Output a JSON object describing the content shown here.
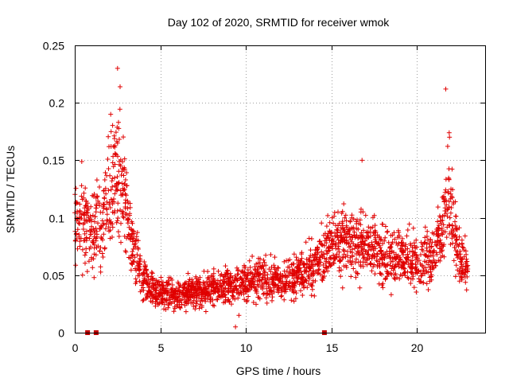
{
  "chart_data": {
    "type": "scatter",
    "title": "Day 102 of 2020, SRMTID for receiver wmok",
    "xlabel": "GPS time / hours",
    "ylabel": "SRMTID / TECUs",
    "xlim": [
      0,
      24
    ],
    "ylim": [
      0,
      0.25
    ],
    "xticks": [
      0,
      5,
      10,
      15,
      20
    ],
    "xtick_labels": [
      "0",
      "5",
      "10",
      "15",
      "20"
    ],
    "yticks": [
      0,
      0.05,
      0.1,
      0.15,
      0.2,
      0.25
    ],
    "ytick_labels": [
      "0",
      "0.05",
      "0.1",
      "0.15",
      "0.2",
      "0.25"
    ],
    "grid": true,
    "marker": "+",
    "color": "#e00000",
    "flag_markers_at_zero": [
      0.75,
      1.25,
      14.6
    ],
    "profile_knots": [
      [
        0.0,
        0.095
      ],
      [
        0.5,
        0.1
      ],
      [
        1.0,
        0.085
      ],
      [
        1.5,
        0.095
      ],
      [
        2.0,
        0.12
      ],
      [
        2.5,
        0.14
      ],
      [
        2.9,
        0.12
      ],
      [
        3.2,
        0.085
      ],
      [
        3.6,
        0.065
      ],
      [
        4.0,
        0.045
      ],
      [
        5.0,
        0.035
      ],
      [
        6.0,
        0.033
      ],
      [
        7.0,
        0.035
      ],
      [
        8.0,
        0.038
      ],
      [
        9.0,
        0.042
      ],
      [
        10.0,
        0.045
      ],
      [
        11.0,
        0.048
      ],
      [
        12.0,
        0.045
      ],
      [
        13.0,
        0.048
      ],
      [
        14.0,
        0.06
      ],
      [
        15.0,
        0.075
      ],
      [
        16.0,
        0.08
      ],
      [
        17.0,
        0.075
      ],
      [
        18.0,
        0.07
      ],
      [
        19.0,
        0.065
      ],
      [
        20.0,
        0.06
      ],
      [
        21.0,
        0.065
      ],
      [
        21.5,
        0.085
      ],
      [
        21.8,
        0.13
      ],
      [
        22.2,
        0.09
      ],
      [
        22.5,
        0.065
      ],
      [
        23.0,
        0.06
      ]
    ],
    "peaks": [
      {
        "x": 2.5,
        "y": 0.23
      },
      {
        "x": 2.65,
        "y": 0.214
      },
      {
        "x": 2.1,
        "y": 0.19
      },
      {
        "x": 16.8,
        "y": 0.15
      },
      {
        "x": 21.7,
        "y": 0.212
      },
      {
        "x": 21.9,
        "y": 0.174
      },
      {
        "x": 9.6,
        "y": 0.015
      },
      {
        "x": 9.4,
        "y": 0.005
      }
    ],
    "point_count": 2400
  }
}
